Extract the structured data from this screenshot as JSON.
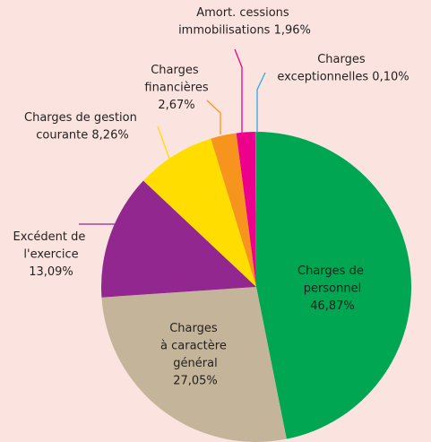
{
  "chart_data": {
    "type": "pie",
    "categories": [
      "Charges de personnel :",
      "Charges à caractère général :",
      "Excédent de l'exercice :",
      "Charges de gestion courante :",
      "Charges financières :",
      "Amort. cessions immobilisations :",
      "Charges exceptionnelles :"
    ],
    "values": [
      46.87,
      27.05,
      13.09,
      8.26,
      2.67,
      1.96,
      0.1
    ],
    "value_labels": [
      "46,87%",
      "27,05%",
      "13,09%",
      "8,26%",
      "2,67%",
      "1,96%",
      "0,10%"
    ],
    "colors": [
      "#00a651",
      "#c4b59a",
      "#92278f",
      "#ffdd00",
      "#f7941d",
      "#ec008c",
      "#29abe2"
    ]
  }
}
